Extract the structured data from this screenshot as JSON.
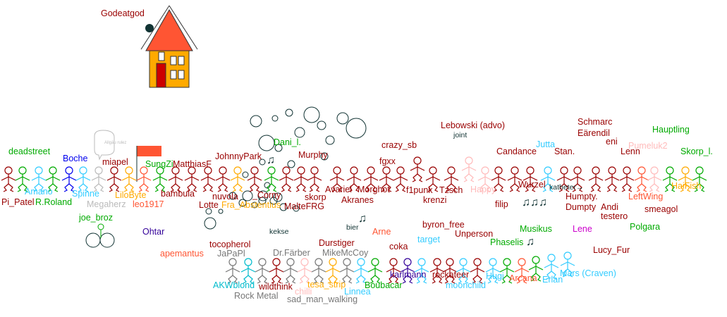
{
  "colors": {
    "darkred": "#990000",
    "green": "#00AA00",
    "lightblue": "#33CCFF",
    "cyan": "#00BBCC",
    "blue": "#0000EE",
    "grey": "#BBBBBB",
    "darkgrey": "#777777",
    "orange": "#FFAA00",
    "redorange": "#FF5533",
    "pink": "#FFBBBB",
    "purple": "#330099",
    "magenta": "#CC00CC",
    "black": "#113333",
    "house_wall": "#FFAA00",
    "house_roof": "#FF5533",
    "house_door": "#CC0000"
  },
  "bubble_text": "Allgäu rulez",
  "figures": {
    "top_row": [
      "darkred",
      "green",
      "lightblue",
      "green",
      "blue",
      "lightblue",
      "grey",
      "darkred",
      "orange",
      "redorange",
      "green",
      "darkred",
      "darkred",
      "darkred",
      "darkred",
      "orange",
      "darkred",
      "green",
      "darkred",
      "darkred",
      "darkred",
      "darkred",
      "darkred",
      "darkred",
      "darkred",
      "darkred",
      "darkred",
      "darkred",
      "darkred",
      "pink",
      "pink",
      "darkred",
      "darkred",
      "darkred",
      "lightblue",
      "darkred",
      "darkred",
      "darkred",
      "darkred",
      "darkred",
      "redorange",
      "pink",
      "green",
      "orange",
      "green"
    ],
    "bottom_row": [
      "darkgrey",
      "cyan",
      "darkgrey",
      "darkred",
      "darkgrey",
      "pink",
      "darkgrey",
      "orange",
      "darkgrey",
      "lightblue",
      "green",
      "darkred",
      "purple",
      "lightblue",
      "darkred",
      "darkred",
      "lightblue",
      "darkred",
      "lightblue",
      "green",
      "redorange",
      "green",
      "lightblue",
      "lightblue"
    ]
  },
  "labels": [
    {
      "text": "Godeatgod",
      "color": "darkred"
    },
    {
      "text": "deadstreet",
      "color": "green"
    },
    {
      "text": "Boche",
      "color": "blue"
    },
    {
      "text": "Amano",
      "color": "lightblue"
    },
    {
      "text": "Pi_Patel",
      "color": "darkred"
    },
    {
      "text": "R.Roland",
      "color": "green"
    },
    {
      "text": "Spinne",
      "color": "lightblue"
    },
    {
      "text": "Megaherz",
      "color": "grey"
    },
    {
      "text": "miapel",
      "color": "darkred"
    },
    {
      "text": "LiloByte",
      "color": "orange"
    },
    {
      "text": "leo1917",
      "color": "redorange"
    },
    {
      "text": "SungZi",
      "color": "green"
    },
    {
      "text": "MatthiasF",
      "color": "darkred"
    },
    {
      "text": "bambula",
      "color": "darkred"
    },
    {
      "text": "JohnnyPark",
      "color": "darkred"
    },
    {
      "text": "nuvola",
      "color": "darkred"
    },
    {
      "text": "Lotte",
      "color": "darkred"
    },
    {
      "text": "Fra_Abstentius",
      "color": "orange"
    },
    {
      "text": "_Corny",
      "color": "darkred"
    },
    {
      "text": "Dani_l.",
      "color": "green"
    },
    {
      "text": "Murphy",
      "color": "darkred"
    },
    {
      "text": "skorp",
      "color": "darkred"
    },
    {
      "text": "MalteFRG",
      "color": "darkred"
    },
    {
      "text": "Avariel",
      "color": "darkred"
    },
    {
      "text": "Morghot",
      "color": "darkred"
    },
    {
      "text": "Akranes",
      "color": "darkred"
    },
    {
      "text": "fgxx",
      "color": "darkred"
    },
    {
      "text": "crazy_sb",
      "color": "darkred"
    },
    {
      "text": "Lebowski (advo)",
      "color": "darkred"
    },
    {
      "text": "joint",
      "color": "black"
    },
    {
      "text": "f1punk",
      "color": "darkred"
    },
    {
      "text": "krenzi",
      "color": "darkred"
    },
    {
      "text": "Tzsch",
      "color": "darkred"
    },
    {
      "text": "Happy",
      "color": "pink"
    },
    {
      "text": "Candance",
      "color": "darkred"
    },
    {
      "text": "Jutta",
      "color": "lightblue"
    },
    {
      "text": "Stan.",
      "color": "darkred"
    },
    {
      "text": "Schmarc",
      "color": "darkred"
    },
    {
      "text": "Eärendil",
      "color": "darkred"
    },
    {
      "text": "eni",
      "color": "darkred"
    },
    {
      "text": "Pumeluk2",
      "color": "pink"
    },
    {
      "text": "Lenn",
      "color": "darkred"
    },
    {
      "text": "Hauptling",
      "color": "green"
    },
    {
      "text": "Skorp_l.",
      "color": "green"
    },
    {
      "text": "HaiFish",
      "color": "orange"
    },
    {
      "text": "Wurzel",
      "color": "darkred"
    },
    {
      "text": "filip",
      "color": "darkred"
    },
    {
      "text": "katheter→",
      "color": "black"
    },
    {
      "text": "Humpty.",
      "color": "darkred"
    },
    {
      "text": "Dumpty",
      "color": "darkred"
    },
    {
      "text": "Andi",
      "color": "darkred"
    },
    {
      "text": "testero",
      "color": "darkred"
    },
    {
      "text": "LeftWing",
      "color": "redorange"
    },
    {
      "text": "smeagol",
      "color": "darkred"
    },
    {
      "text": "joe_broz",
      "color": "green"
    },
    {
      "text": "Ohtar",
      "color": "purple"
    },
    {
      "text": "apemantus",
      "color": "redorange"
    },
    {
      "text": "tocopherol",
      "color": "darkred"
    },
    {
      "text": "kekse",
      "color": "black"
    },
    {
      "text": "bier",
      "color": "black"
    },
    {
      "text": "Durstiger",
      "color": "darkred"
    },
    {
      "text": "Arne",
      "color": "redorange"
    },
    {
      "text": "coka",
      "color": "darkred"
    },
    {
      "text": "JaPaPl",
      "color": "darkgrey"
    },
    {
      "text": "Dr.Färber",
      "color": "darkgrey"
    },
    {
      "text": "MikeMcCoy",
      "color": "darkgrey"
    },
    {
      "text": "byron_free",
      "color": "darkred"
    },
    {
      "text": "Unperson",
      "color": "darkred"
    },
    {
      "text": "target",
      "color": "lightblue"
    },
    {
      "text": "Phaselis",
      "color": "green"
    },
    {
      "text": "Musikus",
      "color": "green"
    },
    {
      "text": "Lene",
      "color": "magenta"
    },
    {
      "text": "Polgara",
      "color": "green"
    },
    {
      "text": "Lucy_Fur",
      "color": "darkred"
    },
    {
      "text": "AKWblond",
      "color": "cyan"
    },
    {
      "text": "wildthink",
      "color": "darkred"
    },
    {
      "text": "chilli",
      "color": "pink"
    },
    {
      "text": "Rock Metal",
      "color": "darkgrey"
    },
    {
      "text": "sad_man_walking",
      "color": "darkgrey"
    },
    {
      "text": "tesa_strip",
      "color": "orange"
    },
    {
      "text": "Linnea",
      "color": "lightblue"
    },
    {
      "text": "Boubacar",
      "color": "green"
    },
    {
      "text": "karlmann",
      "color": "purple"
    },
    {
      "text": "rockateer",
      "color": "darkred"
    },
    {
      "text": "moonchild",
      "color": "lightblue"
    },
    {
      "text": "Hugi",
      "color": "lightblue"
    },
    {
      "text": "Arcana",
      "color": "redorange"
    },
    {
      "text": "Erlan",
      "color": "lightblue"
    },
    {
      "text": "Mars (Craven)",
      "color": "lightblue"
    }
  ]
}
